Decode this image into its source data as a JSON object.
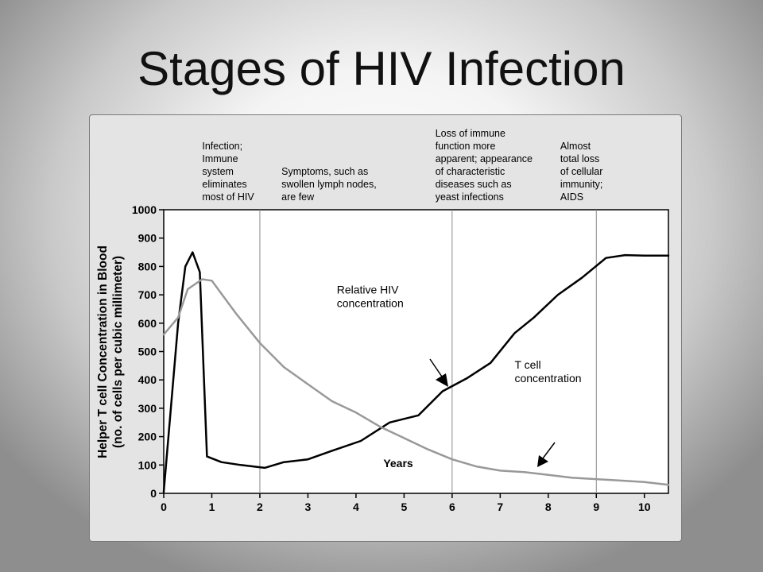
{
  "slide": {
    "title": "Stages of HIV Infection"
  },
  "chart_data": {
    "type": "line",
    "xlabel": "Years",
    "ylabel": "Helper T cell Concentration in Blood",
    "ylabel_sub": "(no. of cells per cubic millimeter)",
    "xlim": [
      0,
      10.5
    ],
    "ylim": [
      0,
      1000
    ],
    "x_ticks": [
      0,
      1,
      2,
      3,
      4,
      5,
      6,
      7,
      8,
      9,
      10
    ],
    "y_ticks": [
      0,
      100,
      200,
      300,
      400,
      500,
      600,
      700,
      800,
      900,
      1000
    ],
    "stage_boundaries": [
      2,
      6,
      9
    ],
    "stage_labels": [
      {
        "x": 0.8,
        "lines": [
          "Infection;",
          "Immune",
          "system",
          "eliminates",
          "most of HIV"
        ]
      },
      {
        "x": 2.45,
        "lines": [
          "Symptoms, such as",
          "swollen lymph nodes,",
          "are few"
        ]
      },
      {
        "x": 5.65,
        "lines": [
          "Loss of immune",
          "function more",
          "apparent; appearance",
          "of characteristic",
          "diseases such as",
          "yeast infections"
        ]
      },
      {
        "x": 8.25,
        "lines": [
          "Almost",
          "total loss",
          "of cellular",
          "immunity;",
          "AIDS"
        ]
      }
    ],
    "series": [
      {
        "name": "T cell concentration",
        "color": "#000000",
        "x": [
          0,
          0.3,
          0.45,
          0.6,
          0.75,
          0.9,
          1.2,
          1.6,
          2.1,
          2.5,
          3.0,
          3.5,
          4.1,
          4.7,
          5.3,
          5.8,
          6.3,
          6.8,
          7.3,
          7.7,
          8.2,
          8.7,
          9.2,
          9.6,
          10.0,
          10.5
        ],
        "y": [
          5,
          600,
          800,
          850,
          780,
          130,
          110,
          100,
          90,
          110,
          120,
          150,
          185,
          250,
          275,
          360,
          405,
          460,
          565,
          620,
          700,
          760,
          830,
          840,
          838,
          838
        ]
      },
      {
        "name": "Relative HIV concentration",
        "color": "#999999",
        "x": [
          0,
          0.3,
          0.5,
          0.8,
          1.0,
          1.5,
          2.0,
          2.5,
          3.0,
          3.5,
          4.0,
          4.5,
          5.0,
          5.5,
          6.0,
          6.5,
          7.0,
          7.5,
          8.0,
          8.5,
          9.0,
          9.5,
          10.0,
          10.5
        ],
        "y": [
          560,
          620,
          720,
          755,
          750,
          635,
          530,
          445,
          385,
          325,
          285,
          235,
          195,
          155,
          120,
          95,
          80,
          75,
          65,
          55,
          50,
          45,
          40,
          30
        ]
      }
    ],
    "annotations": [
      {
        "lines": [
          "Relative HIV",
          "concentration"
        ],
        "x": 3.6,
        "y": 705
      },
      {
        "lines": [
          "T cell",
          "concentration"
        ],
        "x": 7.3,
        "y": 440
      }
    ]
  }
}
